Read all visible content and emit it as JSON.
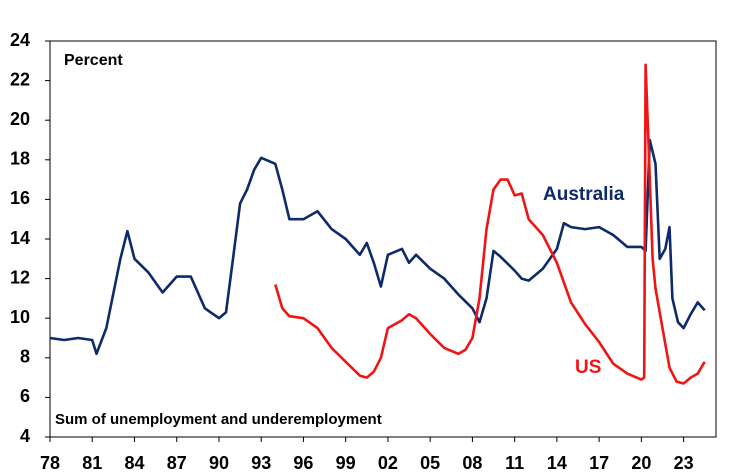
{
  "chart_data": {
    "type": "line",
    "subtitle": "Percent",
    "annotation": "Sum of unemployment and underemployment",
    "xlim": [
      1978,
      2025.3
    ],
    "ylim": [
      4,
      24
    ],
    "yticks": [
      4,
      6,
      8,
      10,
      12,
      14,
      16,
      18,
      20,
      22,
      24
    ],
    "xticks": [
      {
        "value": 1978,
        "label": "78"
      },
      {
        "value": 1981,
        "label": "81"
      },
      {
        "value": 1984,
        "label": "84"
      },
      {
        "value": 1987,
        "label": "87"
      },
      {
        "value": 1990,
        "label": "90"
      },
      {
        "value": 1993,
        "label": "93"
      },
      {
        "value": 1996,
        "label": "96"
      },
      {
        "value": 1999,
        "label": "99"
      },
      {
        "value": 2002,
        "label": "02"
      },
      {
        "value": 2005,
        "label": "05"
      },
      {
        "value": 2008,
        "label": "08"
      },
      {
        "value": 2011,
        "label": "11"
      },
      {
        "value": 2014,
        "label": "14"
      },
      {
        "value": 2017,
        "label": "17"
      },
      {
        "value": 2020,
        "label": "20"
      },
      {
        "value": 2023,
        "label": "23"
      }
    ],
    "series": [
      {
        "name": "Australia",
        "color": "#0f2a6b",
        "x": [
          1978,
          1979,
          1980,
          1981,
          1981.3,
          1982,
          1983,
          1983.5,
          1984,
          1985,
          1986,
          1987,
          1988,
          1989,
          1990,
          1990.5,
          1991,
          1991.5,
          1992,
          1992.5,
          1993,
          1994,
          1994.5,
          1995,
          1996,
          1997,
          1998,
          1999,
          2000,
          2000.5,
          2001,
          2001.5,
          2002,
          2003,
          2003.5,
          2004,
          2005,
          2006,
          2007,
          2008,
          2008.5,
          2009,
          2009.5,
          2010,
          2011,
          2011.5,
          2012,
          2013,
          2013.5,
          2014,
          2014.5,
          2015,
          2016,
          2017,
          2018,
          2019,
          2020,
          2020.3,
          2020.6,
          2021,
          2021.3,
          2021.7,
          2022,
          2022.2,
          2022.6,
          2023,
          2023.5,
          2024,
          2024.5
        ],
        "values": [
          9,
          8.9,
          9,
          8.9,
          8.2,
          9.5,
          13,
          14.4,
          13,
          12.3,
          11.3,
          12.1,
          12.1,
          10.5,
          10,
          10.3,
          13,
          15.8,
          16.5,
          17.5,
          18.1,
          17.8,
          16.5,
          15,
          15,
          15.4,
          14.5,
          14,
          13.2,
          13.8,
          12.8,
          11.6,
          13.2,
          13.5,
          12.8,
          13.2,
          12.5,
          12,
          11.2,
          10.5,
          9.8,
          11,
          13.4,
          13.1,
          12.4,
          12,
          11.9,
          12.5,
          13,
          13.5,
          14.8,
          14.6,
          14.5,
          14.6,
          14.2,
          13.6,
          13.6,
          13.4,
          19,
          17.8,
          13,
          13.5,
          14.6,
          11,
          9.8,
          9.5,
          10.2,
          10.8,
          10.4
        ]
      },
      {
        "name": "US",
        "color": "#f01414",
        "x": [
          1994,
          1994.5,
          1995,
          1996,
          1997,
          1998,
          1999,
          2000,
          2000.5,
          2001,
          2001.5,
          2002,
          2003,
          2003.5,
          2004,
          2005,
          2006,
          2007,
          2007.5,
          2008,
          2008.5,
          2009,
          2009.5,
          2010,
          2010.5,
          2011,
          2011.5,
          2012,
          2013,
          2014,
          2015,
          2016,
          2017,
          2018,
          2019,
          2020,
          2020.2,
          2020.3,
          2020.5,
          2020.8,
          2021,
          2021.5,
          2022,
          2022.5,
          2023,
          2023.5,
          2024,
          2024.5
        ],
        "values": [
          11.7,
          10.5,
          10.1,
          10,
          9.5,
          8.5,
          7.8,
          7.1,
          7,
          7.3,
          8,
          9.5,
          9.9,
          10.2,
          10,
          9.2,
          8.5,
          8.2,
          8.4,
          9,
          11,
          14.5,
          16.5,
          17,
          17,
          16.2,
          16.3,
          15,
          14.2,
          12.8,
          10.8,
          9.7,
          8.8,
          7.7,
          7.2,
          6.9,
          7,
          22.8,
          19,
          13,
          11.5,
          9.5,
          7.5,
          6.8,
          6.7,
          7,
          7.2,
          7.8
        ]
      }
    ]
  }
}
